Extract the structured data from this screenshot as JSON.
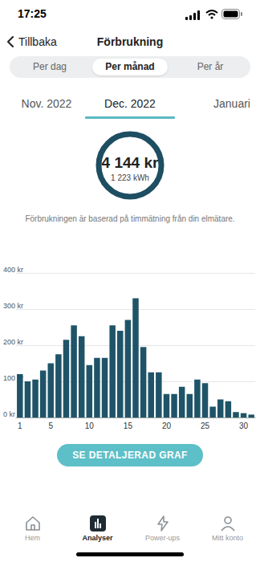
{
  "status_bar": {
    "time": "17:25"
  },
  "header": {
    "back": "Tillbaka",
    "title": "Förbrukning"
  },
  "tabs": {
    "items": [
      "Per dag",
      "Per månad",
      "Per år"
    ],
    "selected": 1
  },
  "months": {
    "items": [
      "Nov. 2022",
      "Dec. 2022",
      "Januari"
    ],
    "selected": 1
  },
  "summary": {
    "cost": "4 144 kr",
    "energy": "1 223 kWh"
  },
  "note": "Förbrukningen är baserad på timmätning från din elmätare.",
  "chart_data": {
    "type": "bar",
    "categories": [
      "1",
      null,
      null,
      null,
      "5",
      null,
      null,
      null,
      null,
      "10",
      null,
      null,
      null,
      null,
      "15",
      null,
      null,
      null,
      null,
      "20",
      null,
      null,
      null,
      null,
      "25",
      null,
      null,
      null,
      null,
      "30",
      null
    ],
    "values": [
      120,
      100,
      105,
      130,
      150,
      175,
      215,
      255,
      225,
      145,
      165,
      165,
      255,
      240,
      270,
      330,
      195,
      125,
      125,
      65,
      65,
      85,
      65,
      105,
      95,
      30,
      50,
      45,
      15,
      12,
      8
    ],
    "color": "#1f5468",
    "ylim": [
      0,
      400
    ],
    "yticks": [
      {
        "value": 0,
        "label": "0 kr"
      },
      {
        "value": 100,
        "label": "100 kr"
      },
      {
        "value": 200,
        "label": "200 kr"
      },
      {
        "value": 300,
        "label": "300 kr"
      },
      {
        "value": 400,
        "label": "400 kr"
      }
    ],
    "grid": true
  },
  "button": "SE DETALJERAD GRAF",
  "nav": {
    "items": [
      "Hem",
      "Analyser",
      "Power-ups",
      "Mitt konto"
    ],
    "selected": 1
  }
}
